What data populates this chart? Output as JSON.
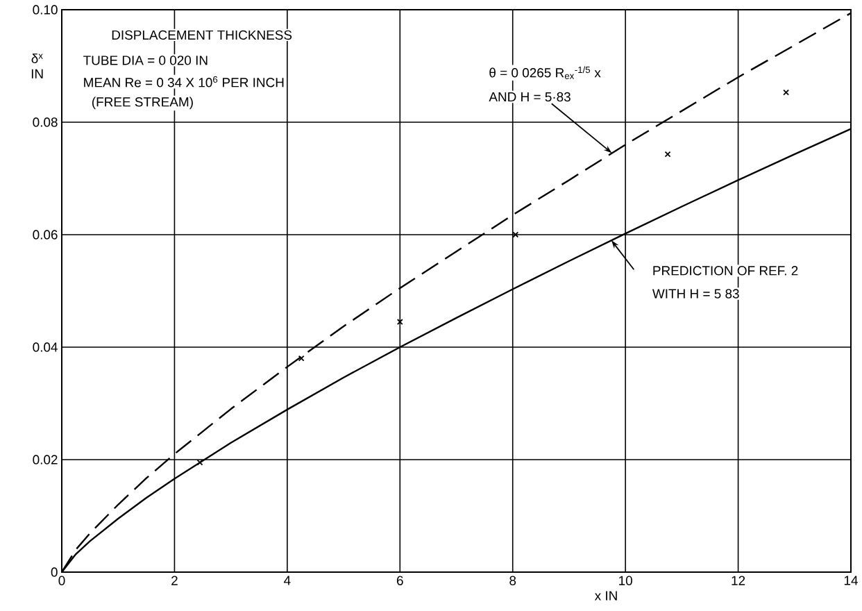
{
  "chart_data": {
    "type": "line",
    "title": "DISPLACEMENT THICKNESS",
    "xlabel": "x IN",
    "ylabel": "δ$^{x}$ IN",
    "xlim": [
      0,
      14
    ],
    "ylim": [
      0,
      0.1
    ],
    "xticks": [
      0,
      2,
      4,
      6,
      8,
      10,
      12,
      14
    ],
    "yticks": [
      0,
      {
        "value": 0.02,
        "label": "0.02"
      },
      {
        "value": 0.04,
        "label": "0.04"
      },
      {
        "value": 0.06,
        "label": "0.06"
      },
      {
        "value": 0.08,
        "label": "0.08"
      },
      {
        "value": 0.1,
        "label": "0.10"
      }
    ],
    "grid": true,
    "series": [
      {
        "color": "#000000",
        "line_style": "dashed",
        "marker": "none",
        "x": [
          0,
          0.25,
          0.5,
          1,
          1.5,
          2,
          3,
          4,
          5,
          6,
          7,
          8,
          9,
          10,
          11,
          12,
          13,
          14
        ],
        "values": [
          0,
          0.004,
          0.0069,
          0.012,
          0.0167,
          0.021,
          0.029,
          0.0365,
          0.0437,
          0.0505,
          0.057,
          0.0635,
          0.0697,
          0.076,
          0.082,
          0.088,
          0.0937,
          0.0994
        ]
      },
      {
        "color": "#000000",
        "line_style": "solid",
        "marker": "none",
        "x": [
          0,
          0.25,
          0.5,
          1,
          1.5,
          2,
          3,
          4,
          5,
          6,
          7,
          8,
          9,
          10,
          11,
          12,
          13,
          14
        ],
        "values": [
          0,
          0.0032,
          0.0055,
          0.0095,
          0.0132,
          0.0166,
          0.023,
          0.0289,
          0.0346,
          0.04,
          0.0452,
          0.0503,
          0.0553,
          0.0602,
          0.065,
          0.0697,
          0.0743,
          0.0788
        ]
      },
      {
        "type": "scatter",
        "color": "#000000",
        "marker": "cross",
        "x": [
          2.45,
          4.25,
          6.0,
          8.05,
          10.75,
          12.85
        ],
        "values": [
          0.0195,
          0.038,
          0.0445,
          0.06,
          0.0743,
          0.0853
        ]
      }
    ],
    "annotations": [
      "TUBE DIA = 0 020 IN",
      "MEAN Re = 0 34 X 10$^{6}$ PER INCH",
      "(FREE STREAM)",
      "θ = 0 0265 R$_{ex}$$^{-1/5}$ x",
      {
        "text": "AND H = 5·83",
        "x": 9.76,
        "y": 0.0745
      },
      "PREDICTION OF REF. 2",
      "WITH H = 5 83"
    ]
  }
}
